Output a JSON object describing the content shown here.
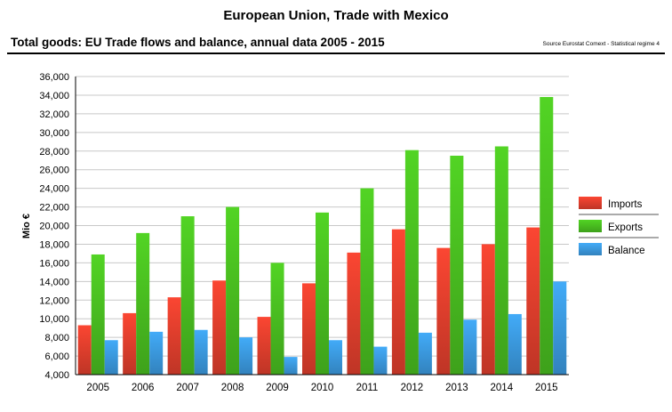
{
  "header": {
    "title": "European Union, Trade with Mexico",
    "subtitle": "Total goods: EU Trade flows and balance, annual data 2005 - 2015",
    "source": "Source Eurostat Comext  - Statistical regime 4"
  },
  "chart_data": {
    "type": "bar",
    "title": "European Union, Trade with Mexico",
    "subtitle": "Total goods: EU Trade flows and balance, annual data 2005 - 2015",
    "xlabel": "",
    "ylabel": "Mio €",
    "ylim": [
      4000,
      36000
    ],
    "yticks": [
      4000,
      6000,
      8000,
      10000,
      12000,
      14000,
      16000,
      18000,
      20000,
      22000,
      24000,
      26000,
      28000,
      30000,
      32000,
      34000,
      36000
    ],
    "ytick_labels": [
      "4,000",
      "6,000",
      "8,000",
      "10,000",
      "12,000",
      "14,000",
      "16,000",
      "18,000",
      "20,000",
      "22,000",
      "24,000",
      "26,000",
      "28,000",
      "30,000",
      "32,000",
      "34,000",
      "36,000"
    ],
    "grid": true,
    "legend": "right",
    "categories": [
      "2005",
      "2006",
      "2007",
      "2008",
      "2009",
      "2010",
      "2011",
      "2012",
      "2013",
      "2014",
      "2015"
    ],
    "series": [
      {
        "name": "Imports",
        "color": "#e8412e",
        "values": [
          9300,
          10600,
          12300,
          14100,
          10200,
          13800,
          17100,
          19600,
          17600,
          18000,
          19800
        ]
      },
      {
        "name": "Exports",
        "color": "#4cc421",
        "values": [
          16900,
          19200,
          21000,
          22000,
          16000,
          21400,
          24000,
          28100,
          27500,
          28500,
          33800
        ]
      },
      {
        "name": "Balance",
        "color": "#3d9ee6",
        "values": [
          7700,
          8600,
          8800,
          8000,
          5900,
          7700,
          7000,
          8500,
          9900,
          10500,
          14000
        ]
      }
    ]
  }
}
